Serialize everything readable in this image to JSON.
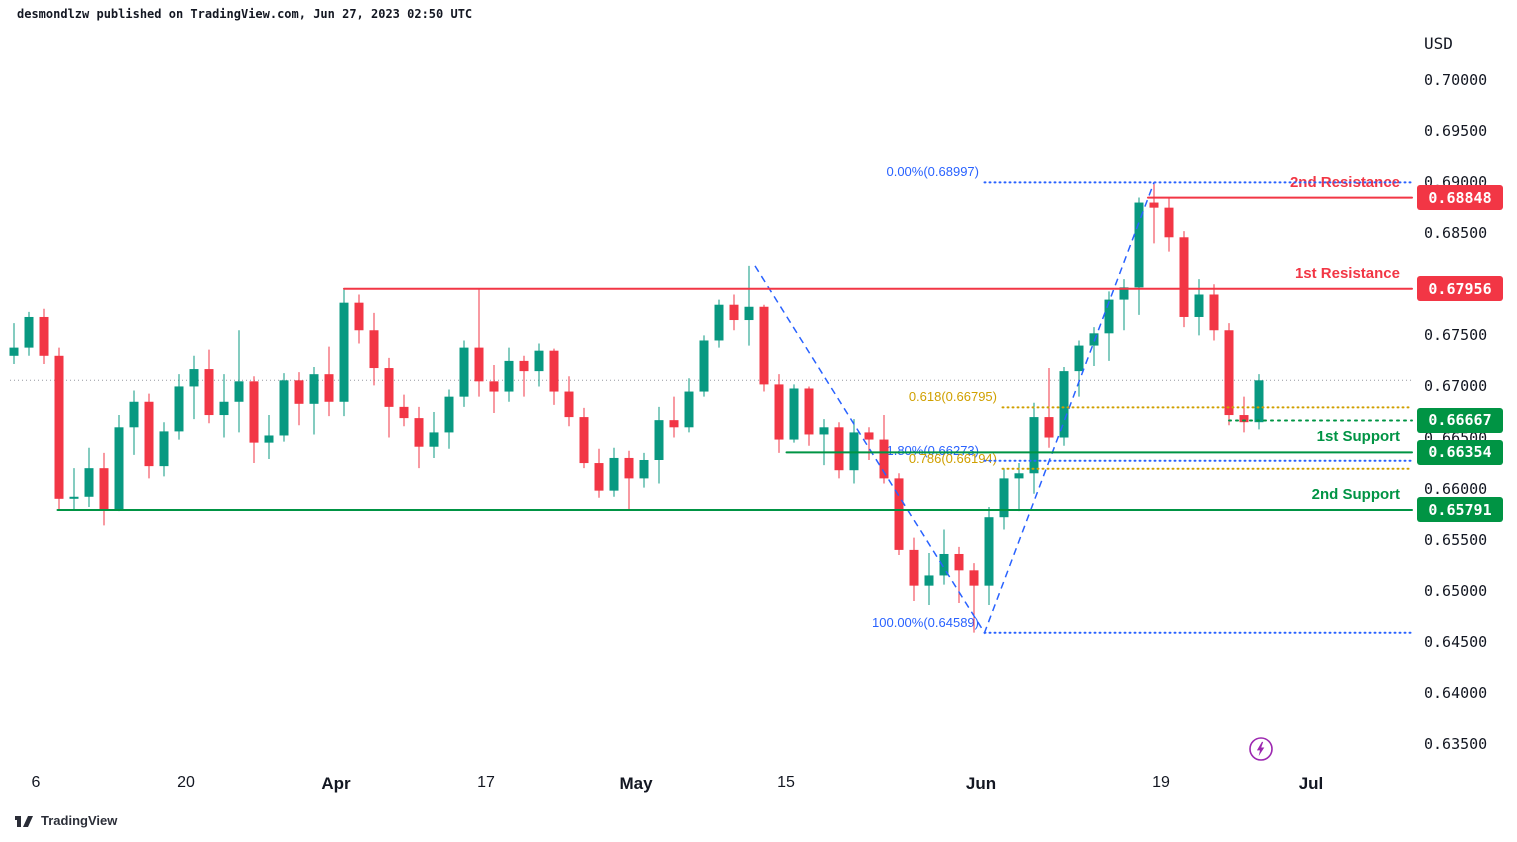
{
  "header": {
    "published_line": "desmondlzw published on TradingView.com, Jun 27, 2023 02:50 UTC"
  },
  "watermark": {
    "logo_text": "TradingView"
  },
  "axes": {
    "currency_label": "USD"
  },
  "lightning_icon": {
    "color": "#9C27B0"
  },
  "chart_data": {
    "type": "candlestick",
    "title": "",
    "ylim": [
      0.635,
      0.7049
    ],
    "grid": "off",
    "up_color": "#089981",
    "down_color": "#F23645",
    "y_tick_labels": [
      "0.70000",
      "0.69500",
      "0.69000",
      "0.68500",
      "0.68000",
      "0.67500",
      "0.67000",
      "0.66500",
      "0.66000",
      "0.65500",
      "0.65000",
      "0.64500",
      "0.64000",
      "0.63500"
    ],
    "x_tick_labels": [
      {
        "text": "6",
        "index": 2,
        "bold": false
      },
      {
        "text": "20",
        "index": 12,
        "bold": false
      },
      {
        "text": "Apr",
        "index": 22,
        "bold": true
      },
      {
        "text": "17",
        "index": 32,
        "bold": false
      },
      {
        "text": "May",
        "index": 42,
        "bold": true
      },
      {
        "text": "15",
        "index": 52,
        "bold": false
      },
      {
        "text": "Jun",
        "index": 65,
        "bold": true
      },
      {
        "text": "19",
        "index": 77,
        "bold": false
      },
      {
        "text": "Jul",
        "index": 87,
        "bold": true
      }
    ],
    "candles": [
      {
        "t": "Mar 2",
        "o": 0.673,
        "h": 0.6762,
        "l": 0.6722,
        "c": 0.6738
      },
      {
        "t": "Mar 3",
        "o": 0.6738,
        "h": 0.6773,
        "l": 0.673,
        "c": 0.6768
      },
      {
        "t": "Mar 6",
        "o": 0.6768,
        "h": 0.6776,
        "l": 0.6722,
        "c": 0.673
      },
      {
        "t": "Mar 7",
        "o": 0.673,
        "h": 0.6738,
        "l": 0.658,
        "c": 0.659
      },
      {
        "t": "Mar 8",
        "o": 0.659,
        "h": 0.662,
        "l": 0.6579,
        "c": 0.6592
      },
      {
        "t": "Mar 9",
        "o": 0.6592,
        "h": 0.664,
        "l": 0.6582,
        "c": 0.662
      },
      {
        "t": "Mar 10",
        "o": 0.662,
        "h": 0.6635,
        "l": 0.6564,
        "c": 0.658
      },
      {
        "t": "Mar 13",
        "o": 0.658,
        "h": 0.6672,
        "l": 0.6578,
        "c": 0.666
      },
      {
        "t": "Mar 14",
        "o": 0.666,
        "h": 0.6696,
        "l": 0.6633,
        "c": 0.6685
      },
      {
        "t": "Mar 15",
        "o": 0.6685,
        "h": 0.6693,
        "l": 0.661,
        "c": 0.6622
      },
      {
        "t": "Mar 16",
        "o": 0.6622,
        "h": 0.6665,
        "l": 0.6612,
        "c": 0.6656
      },
      {
        "t": "Mar 17",
        "o": 0.6656,
        "h": 0.6712,
        "l": 0.6648,
        "c": 0.67
      },
      {
        "t": "Mar 20",
        "o": 0.67,
        "h": 0.673,
        "l": 0.6668,
        "c": 0.6717
      },
      {
        "t": "Mar 21",
        "o": 0.6717,
        "h": 0.6736,
        "l": 0.6664,
        "c": 0.6672
      },
      {
        "t": "Mar 22",
        "o": 0.6672,
        "h": 0.6712,
        "l": 0.665,
        "c": 0.6685
      },
      {
        "t": "Mar 23",
        "o": 0.6685,
        "h": 0.6755,
        "l": 0.6655,
        "c": 0.6705
      },
      {
        "t": "Mar 24",
        "o": 0.6705,
        "h": 0.671,
        "l": 0.6625,
        "c": 0.6645
      },
      {
        "t": "Mar 27",
        "o": 0.6645,
        "h": 0.6672,
        "l": 0.6629,
        "c": 0.6652
      },
      {
        "t": "Mar 28",
        "o": 0.6652,
        "h": 0.6713,
        "l": 0.6646,
        "c": 0.6706
      },
      {
        "t": "Mar 29",
        "o": 0.6706,
        "h": 0.6714,
        "l": 0.6662,
        "c": 0.6683
      },
      {
        "t": "Mar 30",
        "o": 0.6683,
        "h": 0.6719,
        "l": 0.6653,
        "c": 0.6712
      },
      {
        "t": "Mar 31",
        "o": 0.6712,
        "h": 0.6739,
        "l": 0.6671,
        "c": 0.6685
      },
      {
        "t": "Apr 3",
        "o": 0.6685,
        "h": 0.6795,
        "l": 0.6671,
        "c": 0.6782
      },
      {
        "t": "Apr 4",
        "o": 0.6782,
        "h": 0.679,
        "l": 0.6742,
        "c": 0.6755
      },
      {
        "t": "Apr 5",
        "o": 0.6755,
        "h": 0.6772,
        "l": 0.6701,
        "c": 0.6718
      },
      {
        "t": "Apr 6",
        "o": 0.6718,
        "h": 0.6728,
        "l": 0.665,
        "c": 0.668
      },
      {
        "t": "Apr 7",
        "o": 0.668,
        "h": 0.6692,
        "l": 0.6661,
        "c": 0.6669
      },
      {
        "t": "Apr 10",
        "o": 0.6669,
        "h": 0.668,
        "l": 0.662,
        "c": 0.6641
      },
      {
        "t": "Apr 11",
        "o": 0.6641,
        "h": 0.6675,
        "l": 0.663,
        "c": 0.6655
      },
      {
        "t": "Apr 12",
        "o": 0.6655,
        "h": 0.6697,
        "l": 0.6639,
        "c": 0.669
      },
      {
        "t": "Apr 13",
        "o": 0.669,
        "h": 0.6745,
        "l": 0.668,
        "c": 0.6738
      },
      {
        "t": "Apr 14",
        "o": 0.6738,
        "h": 0.6795,
        "l": 0.669,
        "c": 0.6705
      },
      {
        "t": "Apr 17",
        "o": 0.6705,
        "h": 0.6721,
        "l": 0.6674,
        "c": 0.6695
      },
      {
        "t": "Apr 18",
        "o": 0.6695,
        "h": 0.6738,
        "l": 0.6685,
        "c": 0.6725
      },
      {
        "t": "Apr 19",
        "o": 0.6725,
        "h": 0.673,
        "l": 0.669,
        "c": 0.6715
      },
      {
        "t": "Apr 20",
        "o": 0.6715,
        "h": 0.6742,
        "l": 0.67,
        "c": 0.6735
      },
      {
        "t": "Apr 21",
        "o": 0.6735,
        "h": 0.6737,
        "l": 0.6682,
        "c": 0.6695
      },
      {
        "t": "Apr 24",
        "o": 0.6695,
        "h": 0.671,
        "l": 0.6661,
        "c": 0.667
      },
      {
        "t": "Apr 25",
        "o": 0.667,
        "h": 0.6679,
        "l": 0.662,
        "c": 0.6625
      },
      {
        "t": "Apr 26",
        "o": 0.6625,
        "h": 0.6639,
        "l": 0.6591,
        "c": 0.6598
      },
      {
        "t": "Apr 27",
        "o": 0.6598,
        "h": 0.664,
        "l": 0.6592,
        "c": 0.663
      },
      {
        "t": "Apr 28",
        "o": 0.663,
        "h": 0.6637,
        "l": 0.658,
        "c": 0.661
      },
      {
        "t": "May 1",
        "o": 0.661,
        "h": 0.6635,
        "l": 0.6601,
        "c": 0.6628
      },
      {
        "t": "May 2",
        "o": 0.6628,
        "h": 0.668,
        "l": 0.6605,
        "c": 0.6667
      },
      {
        "t": "May 3",
        "o": 0.6667,
        "h": 0.669,
        "l": 0.665,
        "c": 0.666
      },
      {
        "t": "May 4",
        "o": 0.666,
        "h": 0.6708,
        "l": 0.6655,
        "c": 0.6695
      },
      {
        "t": "May 5",
        "o": 0.6695,
        "h": 0.675,
        "l": 0.669,
        "c": 0.6745
      },
      {
        "t": "May 8",
        "o": 0.6745,
        "h": 0.6785,
        "l": 0.6738,
        "c": 0.678
      },
      {
        "t": "May 9",
        "o": 0.678,
        "h": 0.679,
        "l": 0.6755,
        "c": 0.6765
      },
      {
        "t": "May 10",
        "o": 0.6765,
        "h": 0.6818,
        "l": 0.674,
        "c": 0.6778
      },
      {
        "t": "May 11",
        "o": 0.6778,
        "h": 0.678,
        "l": 0.6695,
        "c": 0.6702
      },
      {
        "t": "May 12",
        "o": 0.6702,
        "h": 0.6712,
        "l": 0.6635,
        "c": 0.6648
      },
      {
        "t": "May 15",
        "o": 0.6648,
        "h": 0.6702,
        "l": 0.6645,
        "c": 0.6698
      },
      {
        "t": "May 16",
        "o": 0.6698,
        "h": 0.67,
        "l": 0.6642,
        "c": 0.6653
      },
      {
        "t": "May 17",
        "o": 0.6653,
        "h": 0.6668,
        "l": 0.6623,
        "c": 0.666
      },
      {
        "t": "May 18",
        "o": 0.666,
        "h": 0.6665,
        "l": 0.661,
        "c": 0.6618
      },
      {
        "t": "May 19",
        "o": 0.6618,
        "h": 0.6668,
        "l": 0.6605,
        "c": 0.6655
      },
      {
        "t": "May 22",
        "o": 0.6655,
        "h": 0.666,
        "l": 0.6628,
        "c": 0.6648
      },
      {
        "t": "May 23",
        "o": 0.6648,
        "h": 0.6672,
        "l": 0.6605,
        "c": 0.661
      },
      {
        "t": "May 24",
        "o": 0.661,
        "h": 0.6615,
        "l": 0.6535,
        "c": 0.654
      },
      {
        "t": "May 25",
        "o": 0.654,
        "h": 0.6552,
        "l": 0.649,
        "c": 0.6505
      },
      {
        "t": "May 26",
        "o": 0.6505,
        "h": 0.6537,
        "l": 0.6486,
        "c": 0.6515
      },
      {
        "t": "May 29",
        "o": 0.6515,
        "h": 0.656,
        "l": 0.6506,
        "c": 0.6536
      },
      {
        "t": "May 30",
        "o": 0.6536,
        "h": 0.6543,
        "l": 0.6488,
        "c": 0.652
      },
      {
        "t": "May 31",
        "o": 0.652,
        "h": 0.6527,
        "l": 0.6459,
        "c": 0.6505
      },
      {
        "t": "Jun 1",
        "o": 0.6505,
        "h": 0.6582,
        "l": 0.6486,
        "c": 0.6572
      },
      {
        "t": "Jun 2",
        "o": 0.6572,
        "h": 0.662,
        "l": 0.656,
        "c": 0.661
      },
      {
        "t": "Jun 5",
        "o": 0.661,
        "h": 0.6625,
        "l": 0.6578,
        "c": 0.6615
      },
      {
        "t": "Jun 6",
        "o": 0.6615,
        "h": 0.6684,
        "l": 0.6595,
        "c": 0.667
      },
      {
        "t": "Jun 7",
        "o": 0.667,
        "h": 0.6718,
        "l": 0.664,
        "c": 0.665
      },
      {
        "t": "Jun 8",
        "o": 0.665,
        "h": 0.6719,
        "l": 0.6642,
        "c": 0.6715
      },
      {
        "t": "Jun 9",
        "o": 0.6715,
        "h": 0.6745,
        "l": 0.669,
        "c": 0.674
      },
      {
        "t": "Jun 12",
        "o": 0.674,
        "h": 0.6758,
        "l": 0.672,
        "c": 0.6752
      },
      {
        "t": "Jun 13",
        "o": 0.6752,
        "h": 0.6793,
        "l": 0.6725,
        "c": 0.6785
      },
      {
        "t": "Jun 14",
        "o": 0.6785,
        "h": 0.6805,
        "l": 0.6755,
        "c": 0.6797
      },
      {
        "t": "Jun 15",
        "o": 0.6797,
        "h": 0.6885,
        "l": 0.677,
        "c": 0.688
      },
      {
        "t": "Jun 16",
        "o": 0.688,
        "h": 0.69,
        "l": 0.684,
        "c": 0.6875
      },
      {
        "t": "Jun 19",
        "o": 0.6875,
        "h": 0.6885,
        "l": 0.6832,
        "c": 0.6846
      },
      {
        "t": "Jun 20",
        "o": 0.6846,
        "h": 0.6852,
        "l": 0.6758,
        "c": 0.6768
      },
      {
        "t": "Jun 21",
        "o": 0.6768,
        "h": 0.6805,
        "l": 0.675,
        "c": 0.679
      },
      {
        "t": "Jun 22",
        "o": 0.679,
        "h": 0.68,
        "l": 0.6745,
        "c": 0.6755
      },
      {
        "t": "Jun 23",
        "o": 0.6755,
        "h": 0.6762,
        "l": 0.6662,
        "c": 0.6672
      },
      {
        "t": "Jun 26",
        "o": 0.6672,
        "h": 0.669,
        "l": 0.6655,
        "c": 0.6665
      },
      {
        "t": "Jun 27",
        "o": 0.6665,
        "h": 0.6712,
        "l": 0.6658,
        "c": 0.6706
      }
    ],
    "levels": [
      {
        "name": "second-resistance",
        "label": "2nd Resistance",
        "price": 0.68848,
        "badge": "0.68848",
        "color": "#F23645",
        "style": "solid",
        "start_index": 75.6
      },
      {
        "name": "first-resistance",
        "label": "1st Resistance",
        "price": 0.67956,
        "badge": "0.67956",
        "color": "#F23645",
        "style": "solid",
        "start_index": 22.0
      },
      {
        "name": "price-level-66667",
        "label": "",
        "price": 0.66667,
        "badge": "0.66667",
        "color": "#009444",
        "style": "dotted",
        "start_index": 81.0
      },
      {
        "name": "first-support",
        "label": "1st Support",
        "price": 0.66354,
        "badge": "0.66354",
        "color": "#009444",
        "style": "solid",
        "start_index": 51.5
      },
      {
        "name": "second-support",
        "label": "2nd Support",
        "price": 0.65791,
        "badge": "0.65791",
        "color": "#009444",
        "style": "solid",
        "start_index": 2.9
      }
    ],
    "fib": {
      "zigzag_color": "#2962FF",
      "zigzag": [
        {
          "index": 49.4,
          "price": 0.6818
        },
        {
          "index": 64.7,
          "price": 0.64589
        },
        {
          "index": 76.0,
          "price": 0.68997
        }
      ],
      "labels": [
        {
          "text": "0.00%(0.68997)",
          "price": 0.68997,
          "color": "#2962FF",
          "label_right_x": 979,
          "line_start_index": 64.7
        },
        {
          "text": "0.618(0.66795)",
          "price": 0.66795,
          "color": "#D0A000",
          "label_right_x": 997,
          "line_start_index": 65.9
        },
        {
          "text": "61.80%(0.66273)",
          "price": 0.66273,
          "color": "#2962FF",
          "label_right_x": 979,
          "line_start_index": 64.7
        },
        {
          "text": "0.786(0.66194)",
          "price": 0.66194,
          "color": "#D0A000",
          "label_right_x": 997,
          "line_start_index": 65.9
        },
        {
          "text": "100.00%(0.64589)",
          "price": 0.64589,
          "color": "#2962FF",
          "label_right_x": 979,
          "line_start_index": 64.7
        }
      ]
    },
    "current_price_line": {
      "price": 0.6706,
      "color": "#9598A1"
    }
  }
}
